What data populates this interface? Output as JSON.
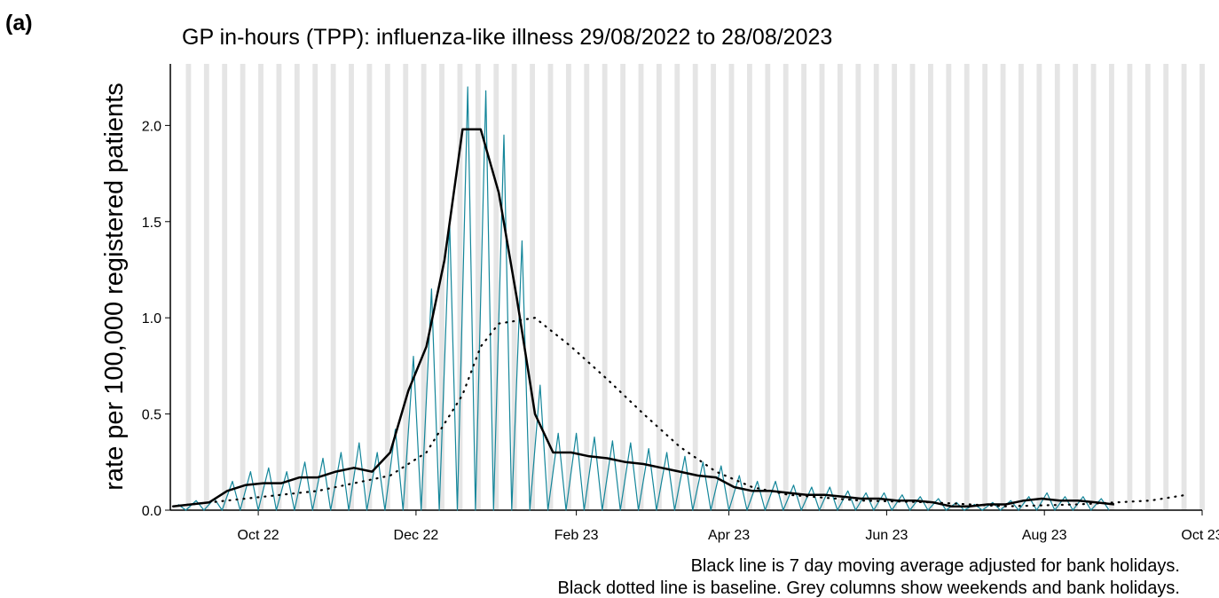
{
  "panel_label": "(a)",
  "chart_data": {
    "type": "line",
    "title": "GP in-hours (TPP): influenza-like illness 29/08/2022 to 28/08/2023",
    "y_label": "rate per 100,000 registered patients",
    "notes": [
      "Black line is 7 day moving average adjusted for bank holidays.",
      "Black dotted line is baseline. Grey columns show weekends and bank holidays."
    ],
    "xlim": [
      "2022-08-28",
      "2023-10-01"
    ],
    "xticks": [
      {
        "value": "2022-10-01",
        "label": "Oct 22"
      },
      {
        "value": "2022-12-01",
        "label": "Dec 22"
      },
      {
        "value": "2023-02-01",
        "label": "Feb 23"
      },
      {
        "value": "2023-04-01",
        "label": "Apr 23"
      },
      {
        "value": "2023-06-01",
        "label": "Jun 23"
      },
      {
        "value": "2023-08-01",
        "label": "Aug 23"
      },
      {
        "value": "2023-10-01",
        "label": "Oct 23"
      }
    ],
    "ylim": [
      0,
      2.32
    ],
    "yticks": [
      {
        "value": 0,
        "label": "0.0"
      },
      {
        "value": 0.5,
        "label": "0.5"
      },
      {
        "value": 1,
        "label": "1.0"
      },
      {
        "value": 1.5,
        "label": "1.5"
      },
      {
        "value": 2,
        "label": "2.0"
      }
    ],
    "weekend_color": "#e5e5e5",
    "series": [
      {
        "style": "thin",
        "color": "#14869a",
        "x": [
          "2022-08-31",
          "2022-09-03",
          "2022-09-07",
          "2022-09-10",
          "2022-09-14",
          "2022-09-17",
          "2022-09-21",
          "2022-09-24",
          "2022-09-28",
          "2022-10-01",
          "2022-10-05",
          "2022-10-08",
          "2022-10-12",
          "2022-10-15",
          "2022-10-19",
          "2022-10-22",
          "2022-10-26",
          "2022-10-29",
          "2022-11-02",
          "2022-11-05",
          "2022-11-09",
          "2022-11-12",
          "2022-11-16",
          "2022-11-19",
          "2022-11-23",
          "2022-11-26",
          "2022-11-30",
          "2022-12-03",
          "2022-12-07",
          "2022-12-10",
          "2022-12-14",
          "2022-12-17",
          "2022-12-21",
          "2022-12-24",
          "2022-12-28",
          "2022-12-31",
          "2023-01-04",
          "2023-01-07",
          "2023-01-11",
          "2023-01-14",
          "2023-01-18",
          "2023-01-21",
          "2023-01-25",
          "2023-01-28",
          "2023-02-01",
          "2023-02-04",
          "2023-02-08",
          "2023-02-11",
          "2023-02-15",
          "2023-02-18",
          "2023-02-22",
          "2023-02-25",
          "2023-03-01",
          "2023-03-04",
          "2023-03-08",
          "2023-03-11",
          "2023-03-15",
          "2023-03-18",
          "2023-03-22",
          "2023-03-25",
          "2023-03-29",
          "2023-04-01",
          "2023-04-05",
          "2023-04-08",
          "2023-04-12",
          "2023-04-15",
          "2023-04-19",
          "2023-04-22",
          "2023-04-26",
          "2023-04-29",
          "2023-05-03",
          "2023-05-06",
          "2023-05-10",
          "2023-05-13",
          "2023-05-17",
          "2023-05-20",
          "2023-05-24",
          "2023-05-27",
          "2023-05-31",
          "2023-06-03",
          "2023-06-07",
          "2023-06-10",
          "2023-06-14",
          "2023-06-17",
          "2023-06-21",
          "2023-06-24",
          "2023-06-28",
          "2023-07-01",
          "2023-07-05",
          "2023-07-08",
          "2023-07-12",
          "2023-07-15",
          "2023-07-19",
          "2023-07-22",
          "2023-07-26",
          "2023-07-29",
          "2023-08-02",
          "2023-08-05",
          "2023-08-09",
          "2023-08-12",
          "2023-08-16",
          "2023-08-19",
          "2023-08-23",
          "2023-08-26"
        ],
        "values": [
          0.03,
          0,
          0.05,
          0,
          0.06,
          0,
          0.15,
          0,
          0.2,
          0,
          0.22,
          0,
          0.2,
          0,
          0.25,
          0,
          0.27,
          0,
          0.3,
          0,
          0.35,
          0,
          0.3,
          0,
          0.42,
          0,
          0.8,
          0,
          1.15,
          0,
          1.5,
          0,
          2.2,
          0,
          2.18,
          0,
          1.95,
          0,
          1.4,
          0,
          0.65,
          0,
          0.4,
          0,
          0.4,
          0,
          0.38,
          0,
          0.36,
          0,
          0.35,
          0,
          0.32,
          0,
          0.3,
          0,
          0.28,
          0,
          0.25,
          0,
          0.23,
          0,
          0.18,
          0,
          0.15,
          0,
          0.15,
          0,
          0.13,
          0,
          0.12,
          0,
          0.12,
          0,
          0.1,
          0,
          0.09,
          0,
          0.09,
          0,
          0.08,
          0,
          0.07,
          0,
          0.06,
          0,
          0.04,
          0,
          0.03,
          0,
          0.04,
          0,
          0.05,
          0,
          0.07,
          0,
          0.09,
          0,
          0.07,
          0,
          0.07,
          0,
          0.06,
          0
        ]
      },
      {
        "style": "solid",
        "color": "#000000",
        "x": [
          "2022-08-29",
          "2022-09-05",
          "2022-09-12",
          "2022-09-19",
          "2022-09-26",
          "2022-10-03",
          "2022-10-10",
          "2022-10-17",
          "2022-10-24",
          "2022-10-31",
          "2022-11-07",
          "2022-11-14",
          "2022-11-21",
          "2022-11-28",
          "2022-12-05",
          "2022-12-12",
          "2022-12-19",
          "2022-12-26",
          "2023-01-02",
          "2023-01-09",
          "2023-01-16",
          "2023-01-23",
          "2023-01-30",
          "2023-02-06",
          "2023-02-13",
          "2023-02-20",
          "2023-02-27",
          "2023-03-06",
          "2023-03-13",
          "2023-03-20",
          "2023-03-27",
          "2023-04-03",
          "2023-04-10",
          "2023-04-17",
          "2023-04-24",
          "2023-05-01",
          "2023-05-08",
          "2023-05-15",
          "2023-05-22",
          "2023-05-29",
          "2023-06-05",
          "2023-06-12",
          "2023-06-19",
          "2023-06-26",
          "2023-07-03",
          "2023-07-10",
          "2023-07-17",
          "2023-07-24",
          "2023-07-31",
          "2023-08-07",
          "2023-08-14",
          "2023-08-21",
          "2023-08-28"
        ],
        "values": [
          0.02,
          0.03,
          0.04,
          0.1,
          0.13,
          0.14,
          0.14,
          0.17,
          0.17,
          0.2,
          0.22,
          0.2,
          0.3,
          0.62,
          0.85,
          1.3,
          1.98,
          1.98,
          1.65,
          1.1,
          0.5,
          0.3,
          0.3,
          0.28,
          0.27,
          0.25,
          0.24,
          0.22,
          0.2,
          0.18,
          0.17,
          0.12,
          0.1,
          0.1,
          0.09,
          0.08,
          0.08,
          0.07,
          0.06,
          0.06,
          0.05,
          0.05,
          0.04,
          0.02,
          0.02,
          0.03,
          0.03,
          0.05,
          0.06,
          0.05,
          0.05,
          0.04,
          0.03
        ]
      },
      {
        "style": "dotted",
        "color": "#000000",
        "x": [
          "2022-08-29",
          "2022-09-26",
          "2022-10-24",
          "2022-11-21",
          "2022-12-05",
          "2022-12-19",
          "2022-12-26",
          "2023-01-02",
          "2023-01-16",
          "2023-01-30",
          "2023-02-13",
          "2023-02-27",
          "2023-03-13",
          "2023-03-27",
          "2023-04-10",
          "2023-04-24",
          "2023-05-22",
          "2023-06-19",
          "2023-07-17",
          "2023-08-14",
          "2023-09-11",
          "2023-09-25"
        ],
        "values": [
          0.02,
          0.06,
          0.1,
          0.18,
          0.3,
          0.6,
          0.85,
          0.97,
          1.0,
          0.85,
          0.68,
          0.5,
          0.33,
          0.2,
          0.12,
          0.08,
          0.05,
          0.04,
          0.02,
          0.03,
          0.05,
          0.08
        ]
      }
    ]
  }
}
